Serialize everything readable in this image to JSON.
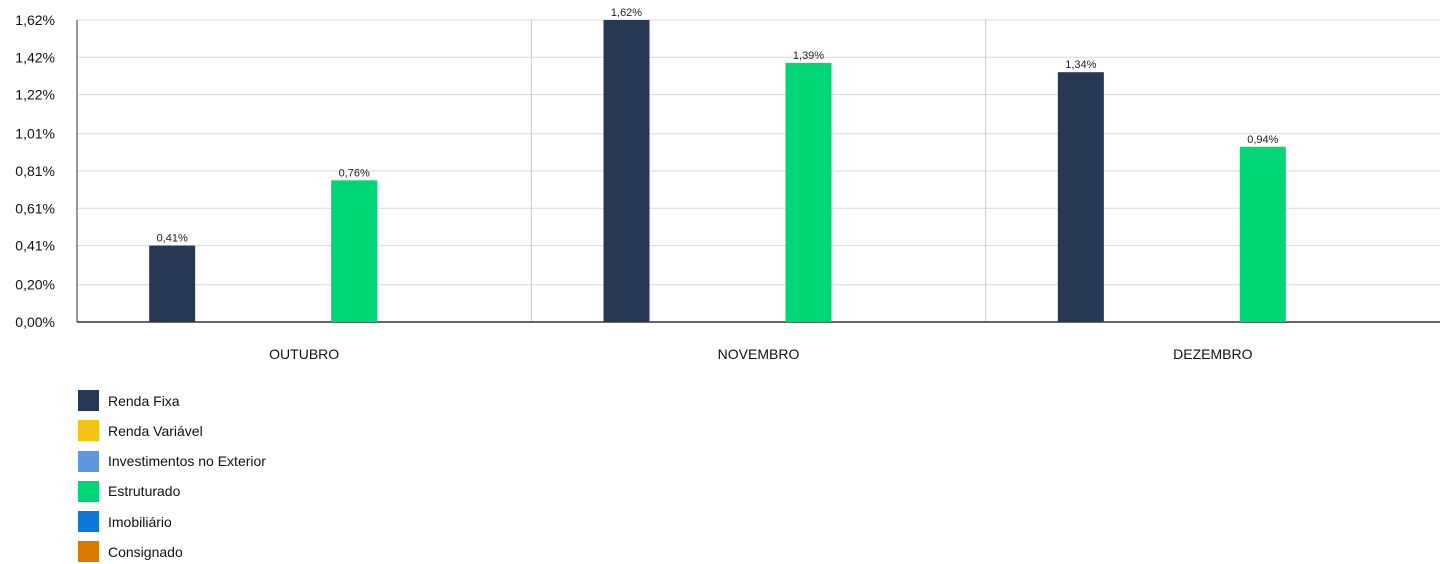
{
  "chart_data": {
    "type": "bar",
    "categories": [
      "OUTUBRO",
      "NOVEMBRO",
      "DEZEMBRO"
    ],
    "series": [
      {
        "name": "Renda Fixa",
        "color": "#263854",
        "values": [
          0.41,
          1.62,
          1.34
        ],
        "labels": [
          "0,41%",
          "1,62%",
          "1,34%"
        ]
      },
      {
        "name": "Renda Variável",
        "color": "#f5c313",
        "values": [
          null,
          null,
          null
        ],
        "labels": []
      },
      {
        "name": "Investimentos no Exterior",
        "color": "#5e97e0",
        "values": [
          null,
          null,
          null
        ],
        "labels": []
      },
      {
        "name": "Estruturado",
        "color": "#00d675",
        "values": [
          0.76,
          1.39,
          0.94
        ],
        "labels": [
          "0,76%",
          "1,39%",
          "0,94%"
        ]
      },
      {
        "name": "Imobiliário",
        "color": "#0a78d6",
        "values": [
          null,
          null,
          null
        ],
        "labels": []
      },
      {
        "name": "Consignado",
        "color": "#dc7a00",
        "values": [
          null,
          null,
          null
        ],
        "labels": []
      }
    ],
    "yticks": [
      0,
      0.2,
      0.41,
      0.61,
      0.81,
      1.01,
      1.22,
      1.42,
      1.62
    ],
    "ytick_labels": [
      "0,00%",
      "0,20%",
      "0,41%",
      "0,61%",
      "0,81%",
      "1,01%",
      "1,22%",
      "1,42%",
      "1,62%"
    ],
    "ylim": [
      0,
      1.62
    ],
    "grid": true,
    "legend_position": "bottom-left",
    "xlabel": "",
    "ylabel": ""
  }
}
